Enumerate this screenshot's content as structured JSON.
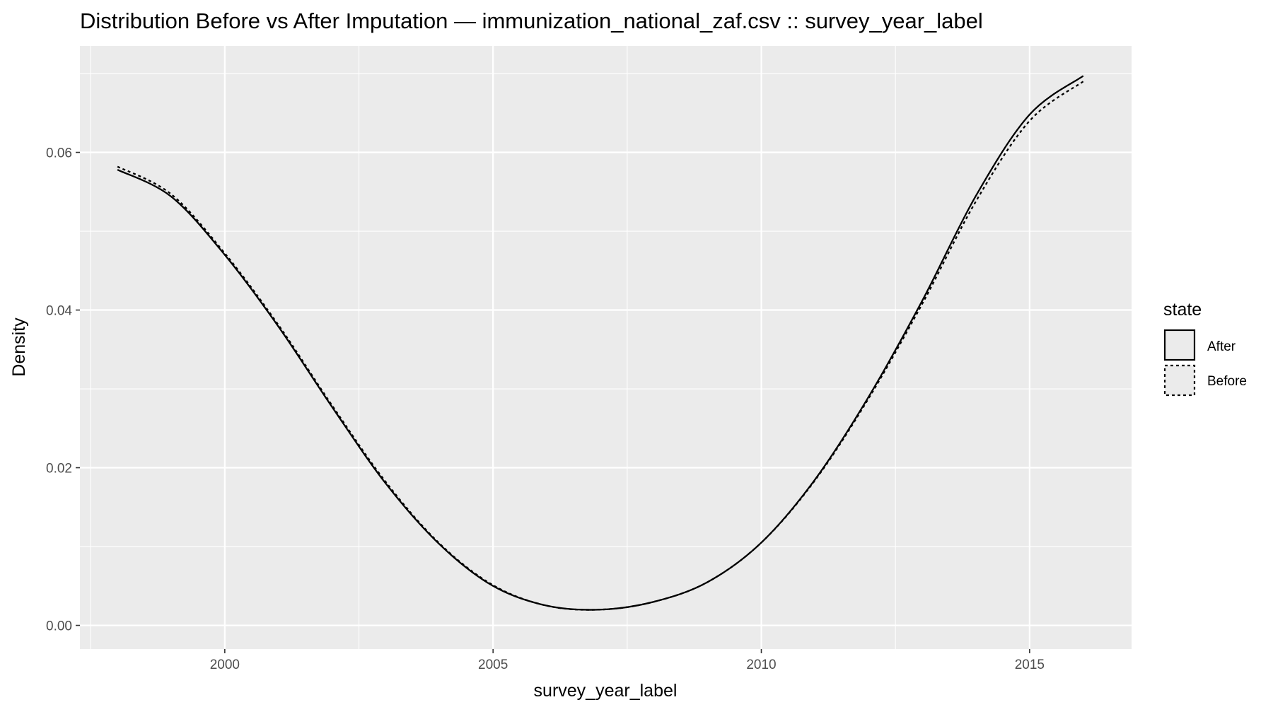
{
  "chart_data": {
    "type": "line",
    "title": "Distribution Before vs After Imputation — immunization_national_zaf.csv :: survey_year_label",
    "xlabel": "survey_year_label",
    "ylabel": "Density",
    "xlim": [
      1997.3,
      2016.9
    ],
    "ylim": [
      -0.003,
      0.0735
    ],
    "x_ticks": [
      2000,
      2005,
      2010,
      2015
    ],
    "x_tick_labels": [
      "2000",
      "2005",
      "2010",
      "2015"
    ],
    "y_ticks": [
      0.0,
      0.02,
      0.04,
      0.06
    ],
    "y_tick_labels": [
      "0.00",
      "0.02",
      "0.04",
      "0.06"
    ],
    "grid": true,
    "legend": {
      "title": "state",
      "position": "right",
      "entries": [
        {
          "label": "After",
          "linestyle": "solid"
        },
        {
          "label": "Before",
          "linestyle": "dotted"
        }
      ]
    },
    "series": [
      {
        "name": "After",
        "linestyle": "solid",
        "x": [
          1998,
          1999,
          2000,
          2001,
          2002,
          2003,
          2004,
          2005,
          2006,
          2007,
          2008,
          2009,
          2010,
          2011,
          2012,
          2013,
          2014,
          2015,
          2016
        ],
        "y": [
          0.0578,
          0.0544,
          0.047,
          0.0379,
          0.0277,
          0.018,
          0.0103,
          0.005,
          0.0025,
          0.002,
          0.003,
          0.0055,
          0.0105,
          0.0185,
          0.029,
          0.0412,
          0.0545,
          0.0648,
          0.0697
        ]
      },
      {
        "name": "Before",
        "linestyle": "dotted",
        "x": [
          1998,
          1999,
          2000,
          2001,
          2002,
          2003,
          2004,
          2005,
          2006,
          2007,
          2008,
          2009,
          2010,
          2011,
          2012,
          2013,
          2014,
          2015,
          2016
        ],
        "y": [
          0.0582,
          0.0547,
          0.0472,
          0.0381,
          0.0279,
          0.0182,
          0.0104,
          0.0051,
          0.0025,
          0.002,
          0.003,
          0.0055,
          0.0105,
          0.0184,
          0.0288,
          0.0408,
          0.0538,
          0.064,
          0.069
        ]
      }
    ]
  }
}
